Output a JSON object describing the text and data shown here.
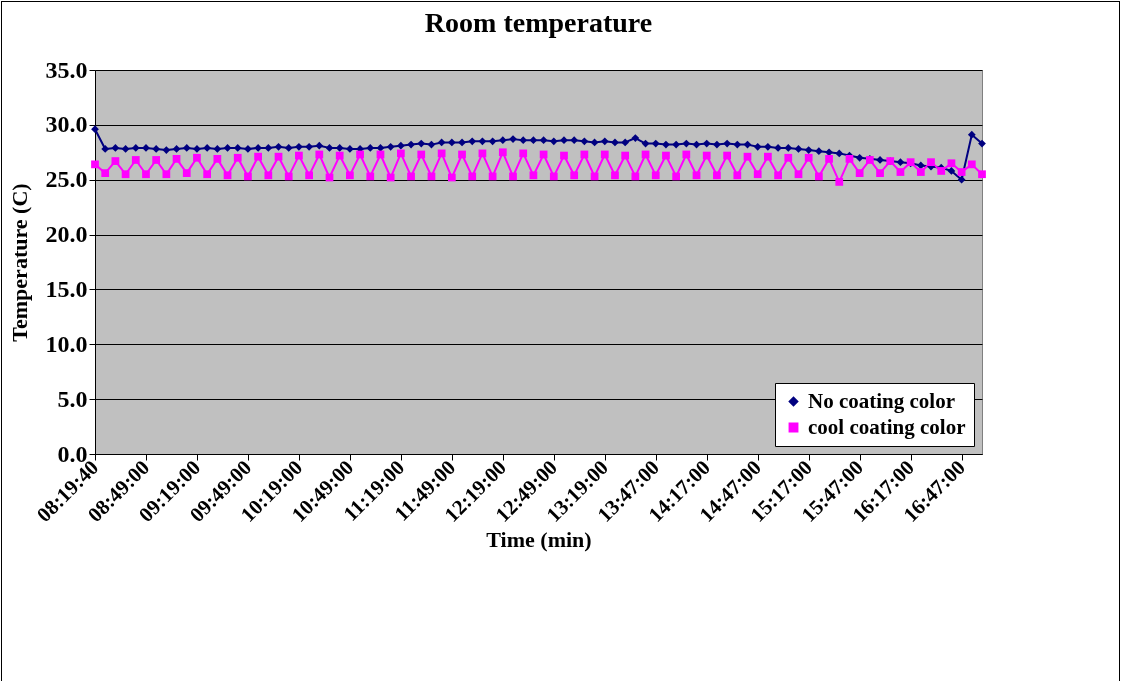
{
  "chart_data": {
    "type": "line",
    "title": "Room temperature",
    "xlabel": "Time (min)",
    "ylabel": "Temperature (C)",
    "categories": [
      "08:19:40",
      null,
      null,
      null,
      null,
      "08:49:00",
      null,
      null,
      null,
      null,
      "09:19:00",
      null,
      null,
      null,
      null,
      "09:49:00",
      null,
      null,
      null,
      null,
      "10:19:00",
      null,
      null,
      null,
      null,
      "10:49:00",
      null,
      null,
      null,
      null,
      "11:19:00",
      null,
      null,
      null,
      null,
      "11:49:00",
      null,
      null,
      null,
      null,
      "12:19:00",
      null,
      null,
      null,
      null,
      "12:49:00",
      null,
      null,
      null,
      null,
      "13:19:00",
      null,
      null,
      null,
      null,
      "13:47:00",
      null,
      null,
      null,
      null,
      "14:17:00",
      null,
      null,
      null,
      null,
      "14:47:00",
      null,
      null,
      null,
      null,
      "15:17:00",
      null,
      null,
      null,
      null,
      "15:47:00",
      null,
      null,
      null,
      null,
      "16:17:00",
      null,
      null,
      null,
      null,
      "16:47:00",
      null,
      null
    ],
    "series": [
      {
        "name": "No coating color",
        "color": "#000080",
        "marker": "diamond",
        "values": [
          29.6,
          27.8,
          27.9,
          27.8,
          27.9,
          27.9,
          27.8,
          27.7,
          27.8,
          27.9,
          27.8,
          27.9,
          27.8,
          27.9,
          27.9,
          27.8,
          27.9,
          27.9,
          28.0,
          27.9,
          28.0,
          28.0,
          28.1,
          27.9,
          27.9,
          27.8,
          27.8,
          27.9,
          27.9,
          28.0,
          28.1,
          28.2,
          28.3,
          28.2,
          28.4,
          28.4,
          28.4,
          28.5,
          28.5,
          28.5,
          28.6,
          28.7,
          28.6,
          28.6,
          28.6,
          28.5,
          28.6,
          28.6,
          28.5,
          28.4,
          28.5,
          28.4,
          28.4,
          28.8,
          28.3,
          28.3,
          28.2,
          28.2,
          28.3,
          28.2,
          28.3,
          28.2,
          28.3,
          28.2,
          28.2,
          28.0,
          28.0,
          27.9,
          27.9,
          27.8,
          27.7,
          27.6,
          27.5,
          27.4,
          27.2,
          27.0,
          26.9,
          26.8,
          26.7,
          26.6,
          26.5,
          26.3,
          26.2,
          26.1,
          25.8,
          25.0,
          29.1,
          28.3
        ]
      },
      {
        "name": "cool coating color",
        "color": "#ff00ff",
        "marker": "square",
        "values": [
          26.4,
          25.6,
          26.7,
          25.5,
          26.8,
          25.5,
          26.8,
          25.5,
          26.9,
          25.6,
          27.0,
          25.5,
          26.9,
          25.4,
          27.0,
          25.3,
          27.1,
          25.4,
          27.1,
          25.3,
          27.2,
          25.4,
          27.3,
          25.2,
          27.2,
          25.4,
          27.3,
          25.3,
          27.3,
          25.2,
          27.4,
          25.3,
          27.3,
          25.3,
          27.4,
          25.2,
          27.3,
          25.3,
          27.4,
          25.3,
          27.5,
          25.3,
          27.4,
          25.4,
          27.3,
          25.3,
          27.2,
          25.4,
          27.3,
          25.3,
          27.3,
          25.4,
          27.2,
          25.3,
          27.3,
          25.4,
          27.2,
          25.3,
          27.3,
          25.4,
          27.2,
          25.4,
          27.2,
          25.4,
          27.1,
          25.5,
          27.1,
          25.4,
          27.0,
          25.5,
          27.0,
          25.3,
          26.9,
          24.8,
          26.9,
          25.6,
          26.8,
          25.6,
          26.7,
          25.7,
          26.6,
          25.7,
          26.6,
          25.8,
          26.5,
          25.7,
          26.4,
          25.5
        ]
      }
    ],
    "ylim": [
      0,
      35
    ],
    "yticks": [
      {
        "value": 0,
        "label": "0.0"
      },
      {
        "value": 5,
        "label": "5.0"
      },
      {
        "value": 10,
        "label": "10.0"
      },
      {
        "value": 15,
        "label": "15.0"
      },
      {
        "value": 20,
        "label": "20.0"
      },
      {
        "value": 25,
        "label": "25.0"
      },
      {
        "value": 30,
        "label": "30.0"
      },
      {
        "value": 35,
        "label": "35.0"
      }
    ],
    "grid": "y",
    "legend": "bottom right"
  }
}
